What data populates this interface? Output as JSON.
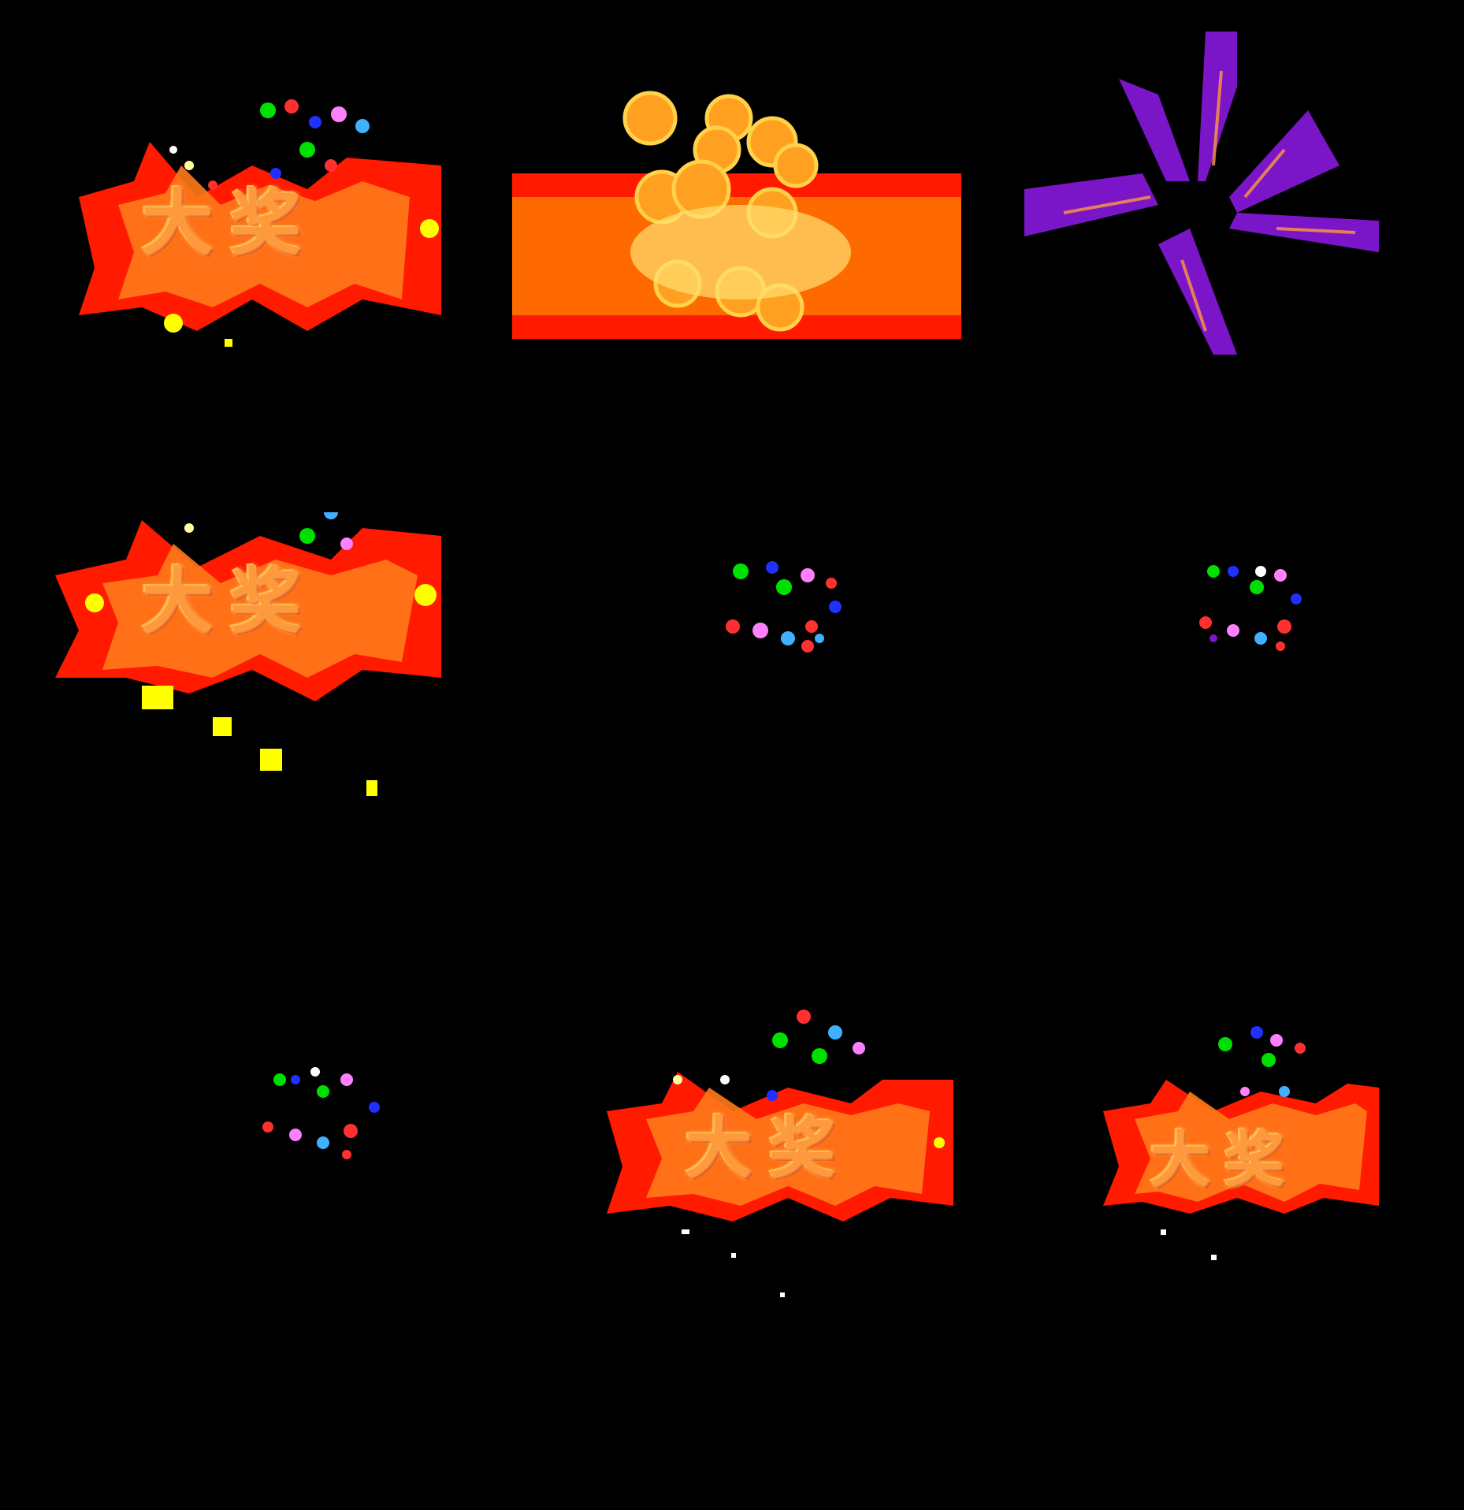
{
  "sheet": {
    "frames": [
      {
        "id": "frame-1",
        "type": "jackpot-banner",
        "text": "大奖",
        "particles": true
      },
      {
        "id": "frame-2",
        "type": "flame-burst"
      },
      {
        "id": "frame-3",
        "type": "purple-rays"
      },
      {
        "id": "frame-4",
        "type": "jackpot-banner",
        "text": "大奖",
        "particles": true
      },
      {
        "id": "frame-5",
        "type": "confetti-cluster"
      },
      {
        "id": "frame-6",
        "type": "confetti-cluster"
      },
      {
        "id": "frame-7",
        "type": "confetti-cluster"
      },
      {
        "id": "frame-8",
        "type": "jackpot-banner",
        "text": "大奖",
        "particles": true
      },
      {
        "id": "frame-9",
        "type": "jackpot-banner",
        "text": "大奖",
        "particles": true
      }
    ]
  },
  "colors": {
    "background": "#000000",
    "banner_red": "#ff1a00",
    "banner_orange": "#ff7a1a",
    "text_orange": "#ff9a3c",
    "flame_gold": "#ffb020",
    "ray_purple": "#7a16c8",
    "spark_yellow": "#ffff00"
  }
}
